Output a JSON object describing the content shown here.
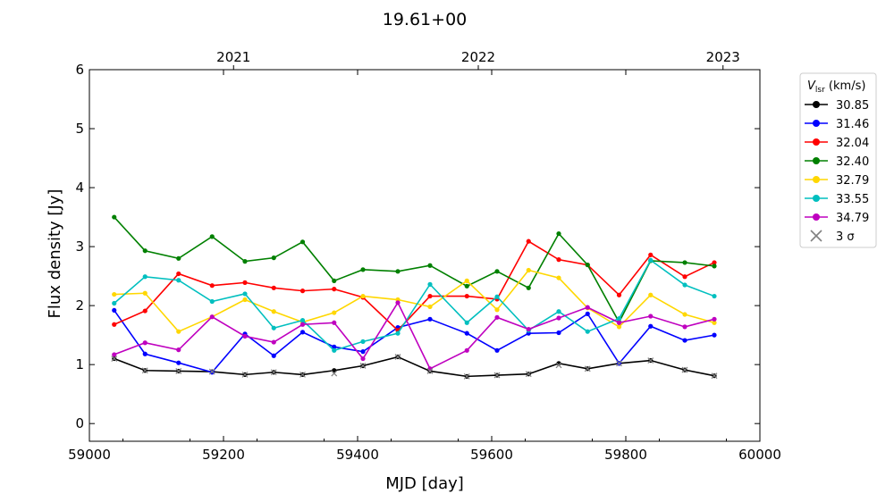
{
  "chart_data": {
    "type": "line",
    "title": "19.61+00",
    "xlabel": "MJD [day]",
    "ylabel": "Flux density [Jy]",
    "xlim": [
      59000,
      60000
    ],
    "ylim": [
      -0.3,
      6
    ],
    "xticks": [
      59000,
      59200,
      59400,
      59600,
      59800,
      60000
    ],
    "xtick_labels": [
      "59000",
      "59200",
      "59400",
      "59600",
      "59800",
      "60000"
    ],
    "yticks": [
      0,
      1,
      2,
      3,
      4,
      5,
      6
    ],
    "ytick_labels": [
      "0",
      "1",
      "2",
      "3",
      "4",
      "5",
      "6"
    ],
    "top_axis": {
      "ticks": [
        59215,
        59580,
        59945
      ],
      "labels": [
        "2021",
        "2022",
        "2023"
      ]
    },
    "grid": false,
    "legend": {
      "placement": "outside-right",
      "title_main": "V",
      "title_sub": "lsr",
      "title_unit": " (km/s)"
    },
    "x": [
      59037,
      59083,
      59133,
      59183,
      59232,
      59275,
      59318,
      59365,
      59408,
      59460,
      59508,
      59563,
      59608,
      59655,
      59700,
      59743,
      59790,
      59837,
      59888,
      59932
    ],
    "series": [
      {
        "name": "30.85",
        "color": "#000000",
        "values": [
          1.1,
          0.9,
          0.89,
          0.88,
          0.83,
          0.87,
          0.83,
          0.9,
          0.98,
          1.13,
          0.89,
          0.8,
          0.82,
          0.84,
          1.02,
          0.93,
          1.02,
          1.07,
          0.91,
          0.81
        ]
      },
      {
        "name": "31.46",
        "color": "#0000ff",
        "values": [
          1.92,
          1.18,
          1.03,
          0.87,
          1.52,
          1.15,
          1.55,
          1.3,
          1.22,
          1.63,
          1.77,
          1.53,
          1.24,
          1.53,
          1.54,
          1.86,
          1.02,
          1.65,
          1.41,
          1.5
        ]
      },
      {
        "name": "32.04",
        "color": "#ff0000",
        "values": [
          1.68,
          1.91,
          2.54,
          2.34,
          2.39,
          2.3,
          2.25,
          2.28,
          2.14,
          1.58,
          2.16,
          2.16,
          2.11,
          3.09,
          2.78,
          2.69,
          2.18,
          2.86,
          2.49,
          2.73
        ]
      },
      {
        "name": "32.40",
        "color": "#008000",
        "values": [
          3.5,
          2.93,
          2.8,
          3.17,
          2.75,
          2.81,
          3.08,
          2.42,
          2.61,
          2.58,
          2.68,
          2.33,
          2.58,
          2.3,
          3.22,
          2.69,
          1.72,
          2.76,
          2.73,
          2.67
        ]
      },
      {
        "name": "32.79",
        "color": "#ffd700",
        "values": [
          2.19,
          2.21,
          1.56,
          1.81,
          2.1,
          1.9,
          1.72,
          1.88,
          2.16,
          2.1,
          1.98,
          2.42,
          1.93,
          2.6,
          2.47,
          1.96,
          1.64,
          2.18,
          1.85,
          1.71
        ]
      },
      {
        "name": "33.55",
        "color": "#00bfbf",
        "values": [
          2.04,
          2.49,
          2.43,
          2.07,
          2.2,
          1.62,
          1.75,
          1.24,
          1.39,
          1.53,
          2.36,
          1.71,
          2.15,
          1.58,
          1.9,
          1.56,
          1.78,
          2.77,
          2.35,
          2.16
        ]
      },
      {
        "name": "34.79",
        "color": "#bf00bf",
        "values": [
          1.17,
          1.37,
          1.25,
          1.81,
          1.48,
          1.38,
          1.68,
          1.71,
          1.1,
          2.05,
          0.93,
          1.24,
          1.8,
          1.6,
          1.79,
          1.97,
          1.71,
          1.82,
          1.64,
          1.77
        ]
      }
    ],
    "sigma_label": "3 σ",
    "sigma_color": "#808080",
    "sigma_points": [
      {
        "x": 59037,
        "y": 1.1
      },
      {
        "x": 59083,
        "y": 0.9
      },
      {
        "x": 59133,
        "y": 0.89
      },
      {
        "x": 59183,
        "y": 0.88
      },
      {
        "x": 59232,
        "y": 0.83
      },
      {
        "x": 59275,
        "y": 0.87
      },
      {
        "x": 59318,
        "y": 0.83
      },
      {
        "x": 59365,
        "y": 0.85
      },
      {
        "x": 59408,
        "y": 0.98
      },
      {
        "x": 59460,
        "y": 1.13
      },
      {
        "x": 59508,
        "y": 0.89
      },
      {
        "x": 59563,
        "y": 0.8
      },
      {
        "x": 59608,
        "y": 0.82
      },
      {
        "x": 59655,
        "y": 0.84
      },
      {
        "x": 59700,
        "y": 0.99
      },
      {
        "x": 59743,
        "y": 0.93
      },
      {
        "x": 59790,
        "y": 1.02
      },
      {
        "x": 59837,
        "y": 1.07
      },
      {
        "x": 59888,
        "y": 0.91
      },
      {
        "x": 59932,
        "y": 0.81
      }
    ]
  }
}
